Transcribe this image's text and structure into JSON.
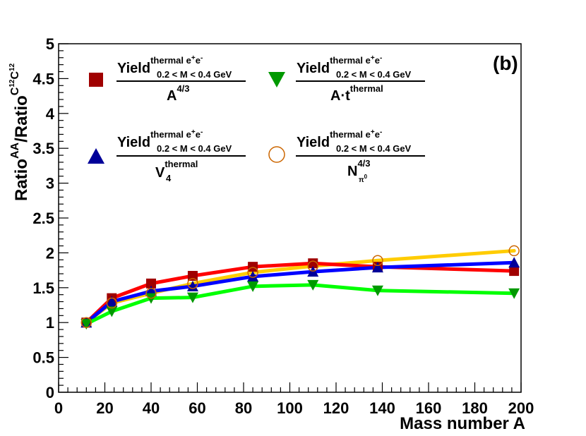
{
  "chart_data": {
    "type": "line",
    "panel_label": "(b)",
    "xlabel": "Mass number A",
    "ylabel": {
      "base": "Ratio",
      "sup1": "AA",
      "slash": "/Ratio",
      "sup2": "C",
      "sup2_pre": "12",
      "sup2_mid": "C",
      "sup2_post": "12"
    },
    "xlim": [
      0,
      200
    ],
    "ylim": [
      0,
      5
    ],
    "x_ticks": [
      "0",
      "20",
      "40",
      "60",
      "80",
      "100",
      "120",
      "140",
      "160",
      "180",
      "200"
    ],
    "y_ticks": [
      "0",
      "0.5",
      "1",
      "1.5",
      "2",
      "2.5",
      "3",
      "3.5",
      "4",
      "4.5",
      "5"
    ],
    "x_tick_values": [
      0,
      20,
      40,
      60,
      80,
      100,
      120,
      140,
      160,
      180,
      200
    ],
    "y_tick_values": [
      0,
      0.5,
      1,
      1.5,
      2,
      2.5,
      3,
      3.5,
      4,
      4.5,
      5
    ],
    "legend_common": {
      "num_base": "Yield",
      "num_sup": "thermal e",
      "num_sup_plus": "+",
      "num_sup_e": "e",
      "num_sup_minus": "-",
      "num_sub": "0.2 < M < 0.4 GeV"
    },
    "series": [
      {
        "name": "A^4/3",
        "den_base": "A",
        "den_sup": "4/3",
        "den_sub": "",
        "marker": "square",
        "marker_color": "#a00000",
        "line_color": "#ff0000",
        "x": [
          12,
          23,
          40,
          58,
          84,
          110,
          138,
          197
        ],
        "y": [
          1.0,
          1.35,
          1.56,
          1.67,
          1.8,
          1.85,
          1.8,
          1.74
        ]
      },
      {
        "name": "V_4^thermal",
        "den_base": "V",
        "den_sup": "thermal",
        "den_sub": "4",
        "marker": "triangle-up",
        "marker_color": "#000099",
        "line_color": "#0000ff",
        "x": [
          12,
          23,
          40,
          58,
          84,
          110,
          138,
          197
        ],
        "y": [
          1.0,
          1.3,
          1.45,
          1.52,
          1.66,
          1.73,
          1.79,
          1.86
        ]
      },
      {
        "name": "A·t^thermal",
        "den_base": "A·t",
        "den_sup": "thermal",
        "den_sub": "",
        "marker": "triangle-down",
        "marker_color": "#009900",
        "line_color": "#00ff00",
        "x": [
          12,
          23,
          40,
          58,
          84,
          110,
          138,
          197
        ],
        "y": [
          0.98,
          1.16,
          1.35,
          1.36,
          1.52,
          1.54,
          1.46,
          1.42
        ]
      },
      {
        "name": "N_pi0^4/3",
        "den_base": "N",
        "den_sup": "4/3",
        "den_sub": "π",
        "den_sub_sup": "0",
        "marker": "circle-open",
        "marker_color": "#cc6600",
        "line_color": "#ffcc00",
        "x": [
          12,
          23,
          40,
          58,
          84,
          110,
          138,
          197
        ],
        "y": [
          1.0,
          1.28,
          1.42,
          1.56,
          1.72,
          1.81,
          1.89,
          2.03
        ]
      }
    ]
  }
}
